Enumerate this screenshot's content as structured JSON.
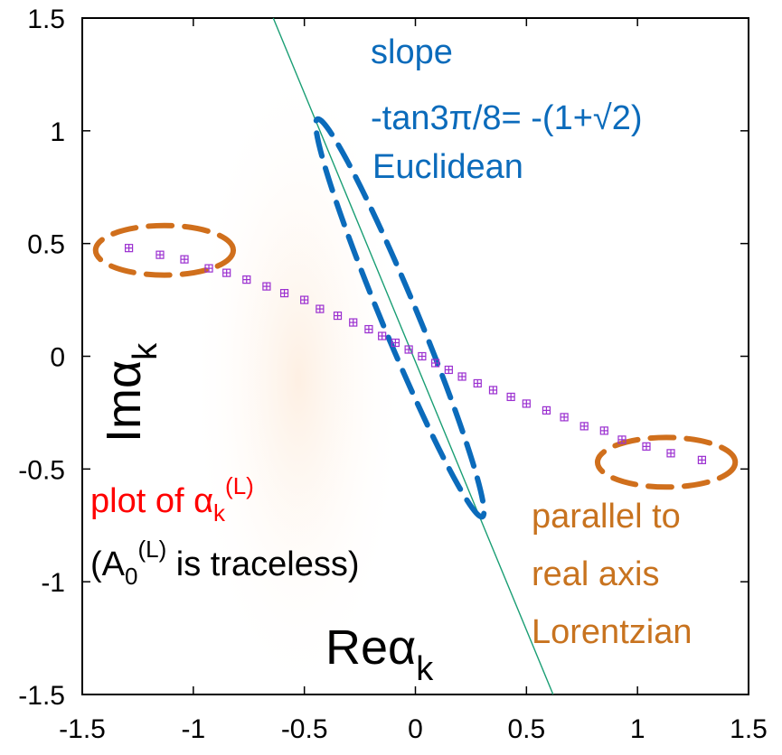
{
  "chart_data": {
    "type": "scatter",
    "xlim": [
      -1.5,
      1.5
    ],
    "ylim": [
      -1.5,
      1.5
    ],
    "x_ticks": [
      "-1.5",
      "-1",
      "-0.5",
      "0",
      "0.5",
      "1",
      "1.5"
    ],
    "y_ticks": [
      "1.5",
      "1",
      "0.5",
      "0",
      "-0.5",
      "-1",
      "-1.5"
    ],
    "grid": false,
    "xlabel": "Reα",
    "xlabel_sub": "k",
    "ylabel": "Imα",
    "ylabel_sub": "k",
    "series": [
      {
        "color": "#9b30d0",
        "marker": "boxed-plus",
        "points": [
          [
            -1.29,
            0.48
          ],
          [
            -1.15,
            0.45
          ],
          [
            -1.04,
            0.43
          ],
          [
            -0.93,
            0.39
          ],
          [
            -0.85,
            0.37
          ],
          [
            -0.76,
            0.34
          ],
          [
            -0.67,
            0.31
          ],
          [
            -0.59,
            0.28
          ],
          [
            -0.5,
            0.25
          ],
          [
            -0.43,
            0.21
          ],
          [
            -0.35,
            0.18
          ],
          [
            -0.28,
            0.15
          ],
          [
            -0.21,
            0.12
          ],
          [
            -0.15,
            0.09
          ],
          [
            -0.09,
            0.06
          ],
          [
            -0.03,
            0.03
          ],
          [
            0.03,
            0.0
          ],
          [
            0.09,
            -0.03
          ],
          [
            0.15,
            -0.06
          ],
          [
            0.21,
            -0.09
          ],
          [
            0.28,
            -0.12
          ],
          [
            0.35,
            -0.15
          ],
          [
            0.43,
            -0.18
          ],
          [
            0.5,
            -0.21
          ],
          [
            0.59,
            -0.24
          ],
          [
            0.67,
            -0.27
          ],
          [
            0.76,
            -0.31
          ],
          [
            0.85,
            -0.33
          ],
          [
            0.93,
            -0.37
          ],
          [
            1.04,
            -0.4
          ],
          [
            1.15,
            -0.43
          ],
          [
            1.29,
            -0.46
          ]
        ]
      }
    ],
    "reference_line": {
      "color": "#1a9e74",
      "points": [
        [
          -0.64,
          1.5
        ],
        [
          0.62,
          -1.5
        ]
      ]
    },
    "ellipses": [
      {
        "color": "#d06f1c",
        "cx": -1.13,
        "cy": 0.47,
        "rx": 0.31,
        "ry": 0.11,
        "angle_deg": 0
      },
      {
        "color": "#d06f1c",
        "cx": 1.13,
        "cy": -0.47,
        "rx": 0.31,
        "ry": 0.11,
        "angle_deg": 0
      },
      {
        "color": "#0b6bbb",
        "cx": -0.07,
        "cy": 0.17,
        "rx": 0.97,
        "ry": 0.08,
        "angle_deg": -67.5
      }
    ],
    "annotations": {
      "slope": {
        "color": "#0b6bbb",
        "lines": [
          "slope",
          "-tan3π/8= -(1+√2)",
          "Euclidean"
        ]
      },
      "plot_of": {
        "color": "#ff0000",
        "text": "plot of α",
        "sub": "k",
        "sup": "(L)"
      },
      "traceless": {
        "color": "#000000",
        "pre": "(A",
        "sub": "0",
        "sup": "(L)",
        "post": " is traceless)"
      },
      "lorentzian": {
        "color": "#c8731f",
        "lines": [
          "parallel to",
          "real axis",
          "Lorentzian"
        ]
      }
    }
  }
}
